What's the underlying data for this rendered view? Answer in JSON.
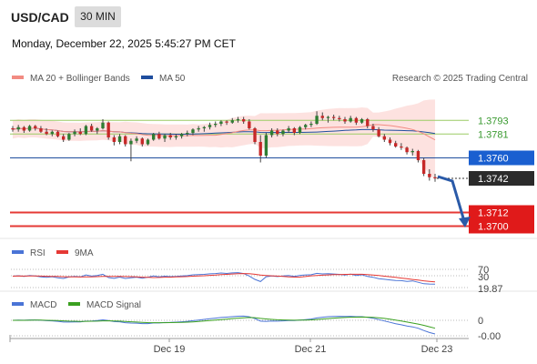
{
  "header": {
    "pair": "USD/CAD",
    "timeframe": "30 MIN",
    "datetime": "Monday, December 22, 2025 5:45:27 PM CET"
  },
  "legend": {
    "ma20_bb": "MA 20 + Bollinger Bands",
    "ma50": "MA 50",
    "credit": "Research © 2025 Trading Central",
    "rsi": "RSI",
    "rsi_ma": "9MA",
    "macd": "MACD",
    "macd_signal": "MACD Signal"
  },
  "colors": {
    "bull": "#2e7d32",
    "bear": "#c62828",
    "ma20": "#f28b82",
    "ma50": "#1f4e9e",
    "bands": "#fde2e0",
    "pivot": "#1f4e9e",
    "support": "#e53935",
    "resistance": "#9ccc65",
    "rsi": "#4a74d6",
    "macd_signal": "#3aa020"
  },
  "levels": [
    {
      "id": "r2",
      "value": 1.3793,
      "label": "1.3793",
      "kind": "resistance"
    },
    {
      "id": "r1",
      "value": 1.3781,
      "label": "1.3781",
      "kind": "resistance"
    },
    {
      "id": "pivot",
      "value": 1.376,
      "label": "1.3760",
      "kind": "pivot"
    },
    {
      "id": "last",
      "value": 1.3742,
      "label": "1.3742",
      "kind": "last"
    },
    {
      "id": "s1",
      "value": 1.3712,
      "label": "1.3712",
      "kind": "support"
    },
    {
      "id": "s2",
      "value": 1.37,
      "label": "1.3700",
      "kind": "support"
    }
  ],
  "x_ticks": [
    "Dec 19",
    "Dec 21",
    "Dec 23"
  ],
  "rsi_ticks": [
    "70",
    "30",
    "19.87"
  ],
  "macd_ticks": [
    "0",
    "-0.00"
  ],
  "chart_data": {
    "type": "candlestick",
    "title": "USD/CAD",
    "ylim": [
      1.3694,
      1.3822
    ],
    "candles": [
      [
        1.3786,
        1.3788,
        1.3783,
        1.3785
      ],
      [
        1.3785,
        1.3789,
        1.3783,
        1.3787
      ],
      [
        1.3787,
        1.3788,
        1.3782,
        1.3784
      ],
      [
        1.3784,
        1.3789,
        1.3783,
        1.3788
      ],
      [
        1.3788,
        1.3789,
        1.3784,
        1.3786
      ],
      [
        1.3786,
        1.3788,
        1.3782,
        1.3783
      ],
      [
        1.3783,
        1.3786,
        1.378,
        1.3781
      ],
      [
        1.3781,
        1.3784,
        1.3779,
        1.3783
      ],
      [
        1.3783,
        1.3784,
        1.3778,
        1.3779
      ],
      [
        1.3779,
        1.3781,
        1.3774,
        1.3776
      ],
      [
        1.3776,
        1.3782,
        1.3775,
        1.3781
      ],
      [
        1.3781,
        1.3785,
        1.3779,
        1.3783
      ],
      [
        1.3783,
        1.3786,
        1.378,
        1.3781
      ],
      [
        1.3781,
        1.3789,
        1.378,
        1.3788
      ],
      [
        1.3788,
        1.379,
        1.3783,
        1.3784
      ],
      [
        1.3784,
        1.3787,
        1.3781,
        1.3786
      ],
      [
        1.3786,
        1.3794,
        1.3785,
        1.3791
      ],
      [
        1.3791,
        1.3792,
        1.3776,
        1.3778
      ],
      [
        1.3778,
        1.378,
        1.3771,
        1.3774
      ],
      [
        1.3774,
        1.3781,
        1.3772,
        1.3779
      ],
      [
        1.3779,
        1.378,
        1.377,
        1.3772
      ],
      [
        1.3772,
        1.3777,
        1.3757,
        1.3775
      ],
      [
        1.3775,
        1.3779,
        1.3773,
        1.3777
      ],
      [
        1.3777,
        1.3778,
        1.377,
        1.3772
      ],
      [
        1.3772,
        1.3777,
        1.3771,
        1.3776
      ],
      [
        1.3776,
        1.3782,
        1.3775,
        1.3781
      ],
      [
        1.3781,
        1.3783,
        1.3776,
        1.3777
      ],
      [
        1.3777,
        1.3781,
        1.3774,
        1.378
      ],
      [
        1.378,
        1.3782,
        1.3776,
        1.3778
      ],
      [
        1.3778,
        1.3781,
        1.3776,
        1.3779
      ],
      [
        1.3779,
        1.3782,
        1.3777,
        1.3781
      ],
      [
        1.3781,
        1.3784,
        1.3779,
        1.3782
      ],
      [
        1.3782,
        1.3786,
        1.378,
        1.3785
      ],
      [
        1.3785,
        1.3788,
        1.3783,
        1.3786
      ],
      [
        1.3786,
        1.3788,
        1.3783,
        1.3787
      ],
      [
        1.3787,
        1.3791,
        1.3785,
        1.3789
      ],
      [
        1.3789,
        1.3792,
        1.3787,
        1.379
      ],
      [
        1.379,
        1.3793,
        1.3788,
        1.3792
      ],
      [
        1.3792,
        1.3793,
        1.3789,
        1.3791
      ],
      [
        1.3791,
        1.3795,
        1.379,
        1.3793
      ],
      [
        1.3793,
        1.3796,
        1.3791,
        1.3794
      ],
      [
        1.3794,
        1.3796,
        1.379,
        1.3792
      ],
      [
        1.3792,
        1.3794,
        1.3785,
        1.3786
      ],
      [
        1.3786,
        1.3787,
        1.3772,
        1.3774
      ],
      [
        1.3774,
        1.378,
        1.3756,
        1.3762
      ],
      [
        1.3762,
        1.3782,
        1.376,
        1.378
      ],
      [
        1.378,
        1.3786,
        1.3778,
        1.3784
      ],
      [
        1.3784,
        1.3786,
        1.3779,
        1.3781
      ],
      [
        1.3781,
        1.3785,
        1.3779,
        1.3784
      ],
      [
        1.3784,
        1.3788,
        1.3782,
        1.3786
      ],
      [
        1.3786,
        1.3787,
        1.378,
        1.3782
      ],
      [
        1.3782,
        1.3788,
        1.3781,
        1.3787
      ],
      [
        1.3787,
        1.379,
        1.3785,
        1.3789
      ],
      [
        1.3789,
        1.3792,
        1.3787,
        1.379
      ],
      [
        1.379,
        1.3801,
        1.3789,
        1.3797
      ],
      [
        1.3797,
        1.38,
        1.3793,
        1.3795
      ],
      [
        1.3795,
        1.3797,
        1.3791,
        1.3796
      ],
      [
        1.3796,
        1.3798,
        1.3793,
        1.3795
      ],
      [
        1.3795,
        1.3797,
        1.3792,
        1.3794
      ],
      [
        1.3794,
        1.3796,
        1.379,
        1.3792
      ],
      [
        1.3792,
        1.3797,
        1.3791,
        1.3795
      ],
      [
        1.3795,
        1.3796,
        1.3789,
        1.3791
      ],
      [
        1.3791,
        1.3795,
        1.379,
        1.3794
      ],
      [
        1.3794,
        1.3795,
        1.3786,
        1.3788
      ],
      [
        1.3788,
        1.379,
        1.3783,
        1.3785
      ],
      [
        1.3785,
        1.3787,
        1.3778,
        1.3779
      ],
      [
        1.3779,
        1.3781,
        1.3774,
        1.3776
      ],
      [
        1.3776,
        1.3778,
        1.3771,
        1.3773
      ],
      [
        1.3773,
        1.3775,
        1.3769,
        1.377
      ],
      [
        1.377,
        1.3773,
        1.3767,
        1.3769
      ],
      [
        1.3769,
        1.377,
        1.3763,
        1.3765
      ],
      [
        1.3765,
        1.3768,
        1.3762,
        1.3766
      ],
      [
        1.3766,
        1.3767,
        1.3756,
        1.3758
      ],
      [
        1.3758,
        1.376,
        1.3744,
        1.3746
      ],
      [
        1.3746,
        1.375,
        1.374,
        1.3743
      ],
      [
        1.3743,
        1.3746,
        1.3739,
        1.3742
      ]
    ],
    "x_labels": [
      "Dec 19",
      "Dec 21",
      "Dec 23"
    ],
    "rsi_last": 19.87,
    "rsi_levels": [
      70,
      30
    ]
  }
}
